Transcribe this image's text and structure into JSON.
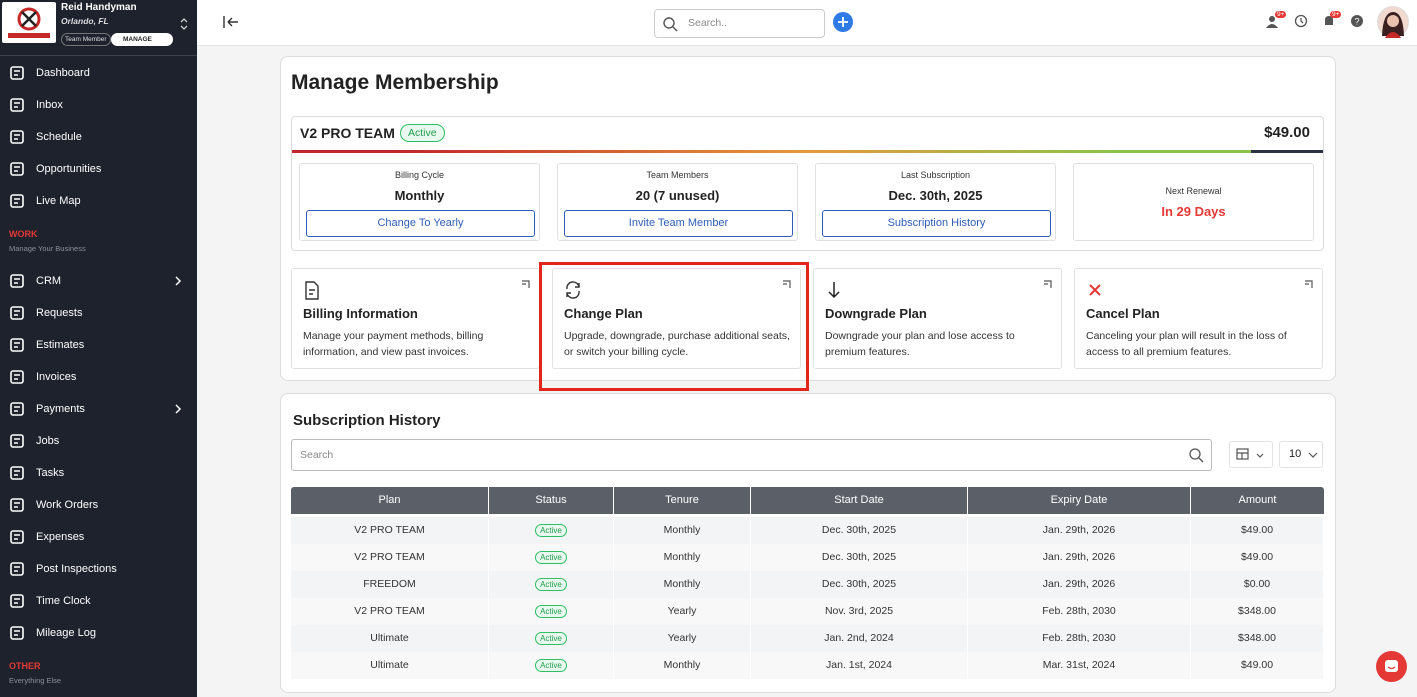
{
  "sidebar": {
    "company": "Reid Handyman",
    "location": "Orlando, FL",
    "role": "Team Member",
    "manage": "MANAGE",
    "nav_main": [
      "Dashboard",
      "Inbox",
      "Schedule",
      "Opportunities",
      "Live Map"
    ],
    "work_section": {
      "title": "WORK",
      "subtitle": "Manage Your Business"
    },
    "nav_work": [
      "CRM",
      "Requests",
      "Estimates",
      "Invoices",
      "Payments",
      "Jobs",
      "Tasks",
      "Work Orders",
      "Expenses",
      "Post Inspections",
      "Time Clock",
      "Mileage Log"
    ],
    "other_section": {
      "title": "OTHER",
      "subtitle": "Everything Else"
    }
  },
  "topbar": {
    "search_placeholder": "Search..",
    "badges": [
      "9+",
      "9+"
    ]
  },
  "membership": {
    "title": "Manage Membership",
    "plan": {
      "name": "V2 PRO TEAM",
      "status": "Active",
      "price": "$49.00"
    },
    "stats": [
      {
        "label": "Billing Cycle",
        "value": "Monthly",
        "button": "Change To Yearly"
      },
      {
        "label": "Team Members",
        "value": "20 (7 unused)",
        "button": "Invite Team Member"
      },
      {
        "label": "Last Subscription",
        "value": "Dec. 30th, 2025",
        "button": "Subscription History"
      }
    ],
    "renewal": {
      "label": "Next Renewal",
      "value": "In 29 Days"
    },
    "actions": [
      {
        "title": "Billing Information",
        "description": "Manage your payment methods, billing information, and view past invoices."
      },
      {
        "title": "Change Plan",
        "description": "Upgrade, downgrade, purchase additional seats, or switch your billing cycle."
      },
      {
        "title": "Downgrade Plan",
        "description": "Downgrade your plan and lose access to premium features."
      },
      {
        "title": "Cancel Plan",
        "description": "Canceling your plan will result in the loss of access to all premium features."
      }
    ]
  },
  "history": {
    "title": "Subscription History",
    "search_placeholder": "Search",
    "page_size": "10",
    "columns": [
      "Plan",
      "Status",
      "Tenure",
      "Start Date",
      "Expiry Date",
      "Amount"
    ],
    "rows": [
      [
        "V2 PRO TEAM",
        "Active",
        "Monthly",
        "Dec. 30th, 2025",
        "Jan. 29th, 2026",
        "$49.00"
      ],
      [
        "V2 PRO TEAM",
        "Active",
        "Monthly",
        "Dec. 30th, 2025",
        "Jan. 29th, 2026",
        "$49.00"
      ],
      [
        "FREEDOM",
        "Active",
        "Monthly",
        "Dec. 30th, 2025",
        "Jan. 29th, 2026",
        "$0.00"
      ],
      [
        "V2 PRO TEAM",
        "Active",
        "Yearly",
        "Nov. 3rd, 2025",
        "Feb. 28th, 2030",
        "$348.00"
      ],
      [
        "Ultimate",
        "Active",
        "Yearly",
        "Jan. 2nd, 2024",
        "Feb. 28th, 2030",
        "$348.00"
      ],
      [
        "Ultimate",
        "Active",
        "Monthly",
        "Jan. 1st, 2024",
        "Mar. 31st, 2024",
        "$49.00"
      ]
    ]
  }
}
